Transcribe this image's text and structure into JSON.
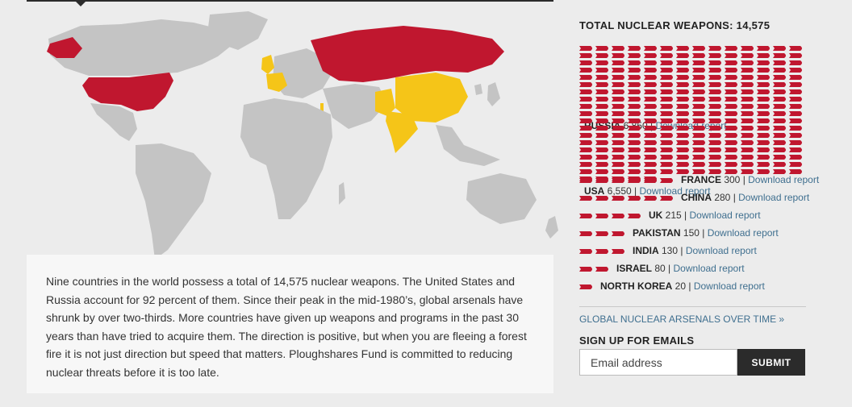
{
  "total_label": "TOTAL NUCLEAR WEAPONS: 14,575",
  "description": "Nine countries in the world possess a total of 14,575 nuclear weapons. The United States and Russia account for 92 percent of them. Since their peak in the mid-1980’s, global arsenals have shrunk by over two-thirds. More countries have given up weapons and programs in the past 30 years than have tried to acquire them. The direction is positive, but when you are fleeing a forest fire it is not just direction but speed that matters. Ploughshares Fund is committed to reducing nuclear threats before it is too late.",
  "download_label": "Download report",
  "separator": "|",
  "countries": [
    {
      "name": "RUSSIA",
      "count": "6,850",
      "value": 6850,
      "highlight": "red"
    },
    {
      "name": "USA",
      "count": "6,550",
      "value": 6550,
      "highlight": "red"
    },
    {
      "name": "FRANCE",
      "count": "300",
      "value": 300,
      "highlight": "yellow"
    },
    {
      "name": "CHINA",
      "count": "280",
      "value": 280,
      "highlight": "yellow"
    },
    {
      "name": "UK",
      "count": "215",
      "value": 215,
      "highlight": "yellow"
    },
    {
      "name": "PAKISTAN",
      "count": "150",
      "value": 150,
      "highlight": "yellow"
    },
    {
      "name": "INDIA",
      "count": "130",
      "value": 130,
      "highlight": "yellow"
    },
    {
      "name": "ISRAEL",
      "count": "80",
      "value": 80,
      "highlight": "yellow"
    },
    {
      "name": "NORTH KOREA",
      "count": "20",
      "value": 20,
      "highlight": "none"
    }
  ],
  "over_time_link": "GLOBAL NUCLEAR ARSENALS OVER TIME »",
  "signup_title": "SIGN UP FOR EMAILS",
  "email_placeholder": "Email address",
  "submit_label": "SUBMIT",
  "colors": {
    "red": "#c0172f",
    "yellow": "#f5c518",
    "land": "#c4c4c4",
    "background": "#ececec",
    "link": "#3f6f8f"
  }
}
